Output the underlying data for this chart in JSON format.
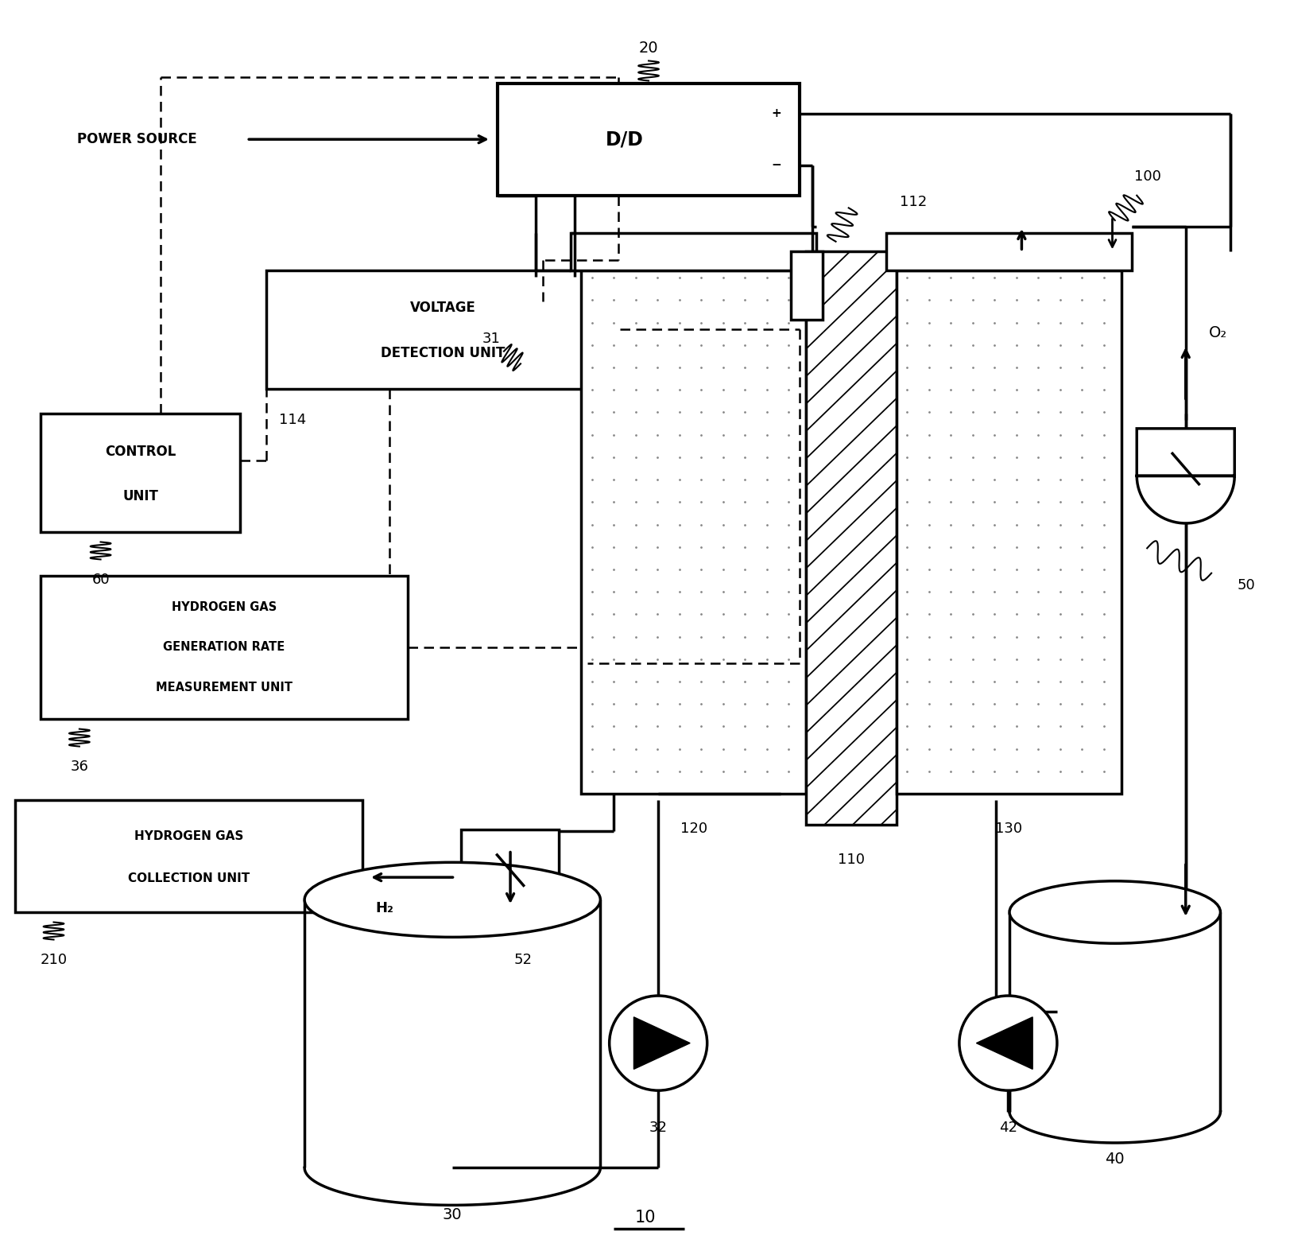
{
  "bg": "#ffffff",
  "lc": "#000000",
  "fig_w": 16.24,
  "fig_h": 15.73,
  "labels": {
    "power_source": "POWER SOURCE",
    "dd": "D/D",
    "voltage_line1": "VOLTAGE",
    "voltage_line2": "DETECTION UNIT",
    "control_line1": "CONTROL",
    "control_line2": "UNIT",
    "h2rate_line1": "HYDROGEN GAS",
    "h2rate_line2": "GENERATION RATE",
    "h2rate_line3": "MEASUREMENT UNIT",
    "h2coll_line1": "HYDROGEN GAS",
    "h2coll_line2": "COLLECTION UNIT",
    "o2": "O₂",
    "h2": "H₂",
    "ref_20": "20",
    "ref_114": "114",
    "ref_60": "60",
    "ref_36": "36",
    "ref_210": "210",
    "ref_52": "52",
    "ref_50": "50",
    "ref_120": "120",
    "ref_110": "110",
    "ref_130": "130",
    "ref_112": "112",
    "ref_30": "30",
    "ref_32": "32",
    "ref_42": "42",
    "ref_40": "40",
    "ref_100": "100",
    "ref_31": "31",
    "ref_10": "10",
    "plus": "+",
    "minus": "−"
  }
}
